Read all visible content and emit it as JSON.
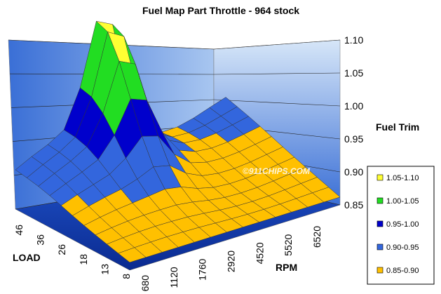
{
  "chart_data": {
    "type": "surface",
    "title": "Fuel Map Part Throttle - 964 stock",
    "zlabel": "Fuel Trim",
    "xlabel": "RPM",
    "ylabel": "LOAD",
    "z_ticks": [
      "1.10",
      "1.05",
      "1.00",
      "0.95",
      "0.90",
      "0.85"
    ],
    "zlim": [
      0.85,
      1.1
    ],
    "rpm_ticks": [
      "680",
      "1120",
      "1760",
      "2920",
      "4520",
      "5520",
      "6520"
    ],
    "load_ticks": [
      "8",
      "13",
      "18",
      "26",
      "36",
      "46"
    ],
    "legend": [
      {
        "label": "1.05-1.10",
        "color": "#FFFF33"
      },
      {
        "label": "1.00-1.05",
        "color": "#22DD22"
      },
      {
        "label": "0.95-1.00",
        "color": "#0000CC"
      },
      {
        "label": "0.90-0.95",
        "color": "#3366DD"
      },
      {
        "label": "0.85-0.90",
        "color": "#FFC000"
      }
    ],
    "watermark": "©911CHIPS.COM"
  }
}
